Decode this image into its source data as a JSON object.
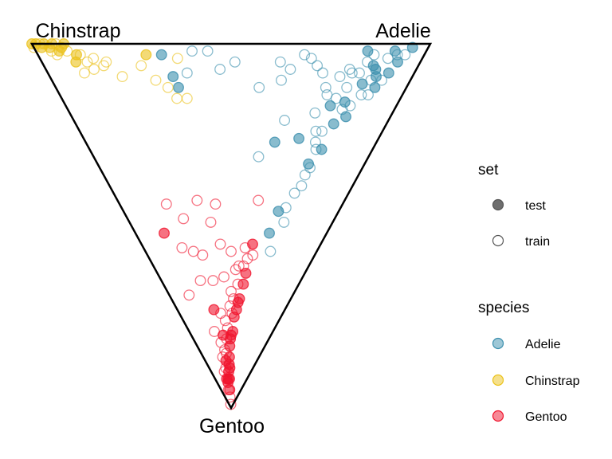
{
  "chart_data": {
    "type": "scatter",
    "subtype": "ternary",
    "title": "",
    "axes": {
      "top_left": "Chinstrap",
      "top_right": "Adelie",
      "bottom": "Gentoo"
    },
    "grid": false,
    "legend_placement": "right",
    "legends": {
      "set": {
        "title": "set",
        "items": [
          {
            "name": "test",
            "style": "filled"
          },
          {
            "name": "train",
            "style": "hollow"
          }
        ]
      },
      "species": {
        "title": "species",
        "items": [
          {
            "name": "Adelie",
            "color": "#3b8fae"
          },
          {
            "name": "Chinstrap",
            "color": "#ebc21a"
          },
          {
            "name": "Gentoo",
            "color": "#f0142d"
          }
        ]
      }
    },
    "colors": {
      "Adelie": "#3b8fae",
      "Chinstrap": "#ebc21a",
      "Gentoo": "#f0142d",
      "axis": "#000000"
    },
    "series": [
      {
        "species": "Adelie",
        "set": "test",
        "points": [
          [
            0.85,
            0.02
          ],
          [
            0.92,
            0.02
          ],
          [
            0.88,
            0.06
          ],
          [
            0.96,
            0.01
          ],
          [
            0.9,
            0.09
          ],
          [
            0.94,
            0.05
          ],
          [
            0.87,
            0.11
          ],
          [
            0.91,
            0.12
          ],
          [
            0.84,
            0.16
          ],
          [
            0.83,
            0.22
          ],
          [
            0.86,
            0.2
          ],
          [
            0.82,
            0.29
          ],
          [
            0.79,
            0.33
          ],
          [
            0.72,
            0.46
          ],
          [
            0.7,
            0.52
          ],
          [
            0.32,
            0.03
          ],
          [
            0.34,
            0.09
          ],
          [
            0.35,
            0.12
          ],
          [
            0.65,
            0.27
          ],
          [
            0.89,
            0.07
          ],
          [
            0.93,
            0.08
          ],
          [
            0.8,
            0.17
          ],
          [
            0.73,
            0.26
          ]
        ]
      },
      {
        "species": "Adelie",
        "set": "train",
        "points": [
          [
            0.93,
            0.03
          ],
          [
            0.91,
            0.04
          ],
          [
            0.86,
            0.05
          ],
          [
            0.95,
            0.03
          ],
          [
            0.89,
            0.1
          ],
          [
            0.92,
            0.1
          ],
          [
            0.9,
            0.14
          ],
          [
            0.88,
            0.14
          ],
          [
            0.85,
            0.08
          ],
          [
            0.83,
            0.08
          ],
          [
            0.8,
            0.09
          ],
          [
            0.81,
            0.15
          ],
          [
            0.77,
            0.12
          ],
          [
            0.75,
            0.08
          ],
          [
            0.73,
            0.06
          ],
          [
            0.69,
            0.03
          ],
          [
            0.66,
            0.07
          ],
          [
            0.71,
            0.04
          ],
          [
            0.64,
            0.1
          ],
          [
            0.83,
            0.12
          ],
          [
            0.78,
            0.14
          ],
          [
            0.76,
            0.19
          ],
          [
            0.78,
            0.24
          ],
          [
            0.8,
            0.24
          ],
          [
            0.79,
            0.27
          ],
          [
            0.8,
            0.29
          ],
          [
            0.8,
            0.34
          ],
          [
            0.79,
            0.36
          ],
          [
            0.79,
            0.39
          ],
          [
            0.77,
            0.41
          ],
          [
            0.75,
            0.45
          ],
          [
            0.76,
            0.49
          ],
          [
            0.73,
            0.57
          ],
          [
            0.67,
            0.21
          ],
          [
            0.6,
            0.31
          ],
          [
            0.63,
            0.05
          ],
          [
            0.51,
            0.05
          ],
          [
            0.47,
            0.07
          ],
          [
            0.38,
            0.08
          ],
          [
            0.4,
            0.02
          ],
          [
            0.44,
            0.02
          ],
          [
            0.58,
            0.12
          ],
          [
            0.84,
            0.18
          ],
          [
            0.86,
            0.17
          ],
          [
            0.82,
            0.07
          ],
          [
            0.87,
            0.03
          ]
        ]
      },
      {
        "species": "Chinstrap",
        "set": "test",
        "points": [
          [
            0.0,
            0.0
          ],
          [
            0.01,
            0.0
          ],
          [
            0.02,
            0.01
          ],
          [
            0.03,
            0.0
          ],
          [
            0.04,
            0.01
          ],
          [
            0.05,
            0.0
          ],
          [
            0.06,
            0.02
          ],
          [
            0.07,
            0.01
          ],
          [
            0.08,
            0.0
          ],
          [
            0.1,
            0.03
          ],
          [
            0.09,
            0.05
          ],
          [
            0.28,
            0.03
          ]
        ]
      },
      {
        "species": "Chinstrap",
        "set": "train",
        "points": [
          [
            0.0,
            0.01
          ],
          [
            0.02,
            0.0
          ],
          [
            0.04,
            0.02
          ],
          [
            0.06,
            0.0
          ],
          [
            0.05,
            0.03
          ],
          [
            0.08,
            0.02
          ],
          [
            0.11,
            0.03
          ],
          [
            0.12,
            0.05
          ],
          [
            0.14,
            0.04
          ],
          [
            0.13,
            0.07
          ],
          [
            0.1,
            0.08
          ],
          [
            0.16,
            0.06
          ],
          [
            0.17,
            0.05
          ],
          [
            0.2,
            0.09
          ],
          [
            0.36,
            0.04
          ],
          [
            0.26,
            0.06
          ],
          [
            0.29,
            0.1
          ],
          [
            0.32,
            0.12
          ],
          [
            0.34,
            0.15
          ],
          [
            0.37,
            0.15
          ]
        ]
      },
      {
        "species": "Gentoo",
        "set": "test",
        "points": [
          [
            0.15,
            0.52
          ],
          [
            0.34,
            0.73
          ],
          [
            0.4,
            0.8
          ],
          [
            0.47,
            0.86
          ],
          [
            0.48,
            0.83
          ],
          [
            0.49,
            0.81
          ],
          [
            0.52,
            0.79
          ],
          [
            0.55,
            0.73
          ],
          [
            0.57,
            0.7
          ],
          [
            0.62,
            0.55
          ],
          [
            0.6,
            0.63
          ],
          [
            0.59,
            0.66
          ],
          [
            0.56,
            0.71
          ],
          [
            0.53,
            0.75
          ],
          [
            0.5,
            0.8
          ],
          [
            0.46,
            0.88
          ],
          [
            0.44,
            0.9
          ],
          [
            0.45,
            0.92
          ],
          [
            0.43,
            0.95
          ],
          [
            0.47,
            0.89
          ],
          [
            0.41,
            0.92
          ],
          [
            0.39,
            0.93
          ],
          [
            0.36,
            0.92
          ],
          [
            0.4,
            0.87
          ]
        ]
      },
      {
        "species": "Gentoo",
        "set": "train",
        "points": [
          [
            0.21,
            0.44
          ],
          [
            0.27,
            0.48
          ],
          [
            0.35,
            0.43
          ],
          [
            0.4,
            0.49
          ],
          [
            0.43,
            0.44
          ],
          [
            0.62,
            0.43
          ],
          [
            0.22,
            0.56
          ],
          [
            0.28,
            0.57
          ],
          [
            0.33,
            0.58
          ],
          [
            0.44,
            0.55
          ],
          [
            0.5,
            0.57
          ],
          [
            0.55,
            0.61
          ],
          [
            0.58,
            0.56
          ],
          [
            0.63,
            0.58
          ],
          [
            0.28,
            0.65
          ],
          [
            0.37,
            0.65
          ],
          [
            0.45,
            0.64
          ],
          [
            0.5,
            0.68
          ],
          [
            0.55,
            0.66
          ],
          [
            0.58,
            0.61
          ],
          [
            0.52,
            0.7
          ],
          [
            0.49,
            0.72
          ],
          [
            0.44,
            0.76
          ],
          [
            0.4,
            0.74
          ],
          [
            0.3,
            0.79
          ],
          [
            0.36,
            0.82
          ],
          [
            0.4,
            0.84
          ],
          [
            0.35,
            0.86
          ],
          [
            0.46,
            0.78
          ],
          [
            0.51,
            0.74
          ],
          [
            0.44,
            0.81
          ],
          [
            0.42,
            0.85
          ],
          [
            0.38,
            0.89
          ],
          [
            0.33,
            0.9
          ],
          [
            0.37,
            0.95
          ],
          [
            0.41,
            0.97
          ],
          [
            0.43,
            0.99
          ],
          [
            0.16,
            0.69
          ],
          [
            0.6,
            0.59
          ],
          [
            0.53,
            0.62
          ]
        ]
      }
    ]
  }
}
